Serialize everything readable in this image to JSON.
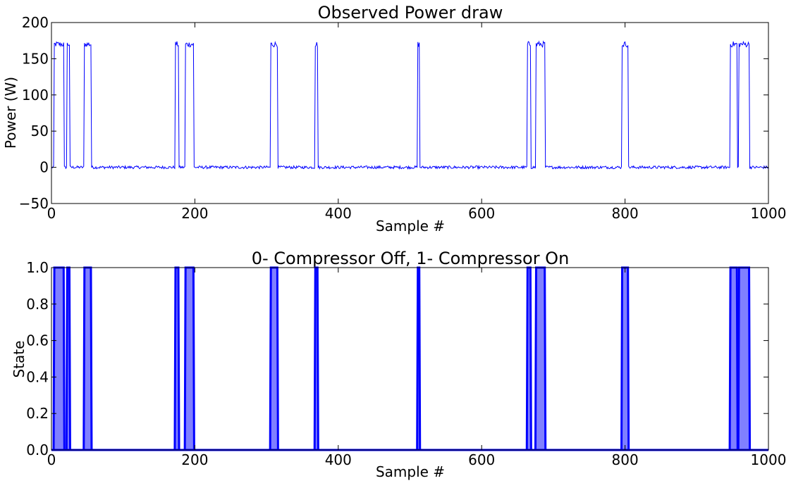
{
  "chart_data": [
    {
      "type": "line",
      "title": "Observed Power draw",
      "xlabel": "Sample #",
      "ylabel": "Power (W)",
      "xlim": [
        0,
        1000
      ],
      "ylim": [
        -50,
        200
      ],
      "xticks": [
        "0",
        "200",
        "400",
        "600",
        "800",
        "1000"
      ],
      "yticks": [
        "−50",
        "0",
        "50",
        "100",
        "150",
        "200"
      ],
      "grid": false,
      "line_color": "#0000ff",
      "on_level": 170,
      "off_level": 0,
      "on_intervals": [
        [
          4,
          17
        ],
        [
          22,
          25
        ],
        [
          46,
          55
        ],
        [
          173,
          177
        ],
        [
          187,
          198
        ],
        [
          306,
          315
        ],
        [
          368,
          371
        ],
        [
          511,
          513
        ],
        [
          664,
          668
        ],
        [
          676,
          688
        ],
        [
          796,
          804
        ],
        [
          947,
          956
        ],
        [
          959,
          973
        ]
      ],
      "noise_amplitude_w": 2
    },
    {
      "type": "area",
      "title": "0- Compressor Off, 1- Compressor On",
      "xlabel": "Sample #",
      "ylabel": "State",
      "xlim": [
        0,
        1000
      ],
      "ylim": [
        0.0,
        1.0
      ],
      "xticks": [
        "0",
        "200",
        "400",
        "600",
        "800",
        "1000"
      ],
      "yticks": [
        "0.0",
        "0.2",
        "0.4",
        "0.6",
        "0.8",
        "1.0"
      ],
      "grid": false,
      "line_color": "#0000ff",
      "fill_color": "#8080ff",
      "on_intervals": [
        [
          4,
          17
        ],
        [
          22,
          25
        ],
        [
          46,
          55
        ],
        [
          173,
          177
        ],
        [
          187,
          198
        ],
        [
          306,
          315
        ],
        [
          368,
          371
        ],
        [
          511,
          513
        ],
        [
          664,
          668
        ],
        [
          676,
          688
        ],
        [
          796,
          804
        ],
        [
          947,
          956
        ],
        [
          959,
          973
        ]
      ]
    }
  ]
}
